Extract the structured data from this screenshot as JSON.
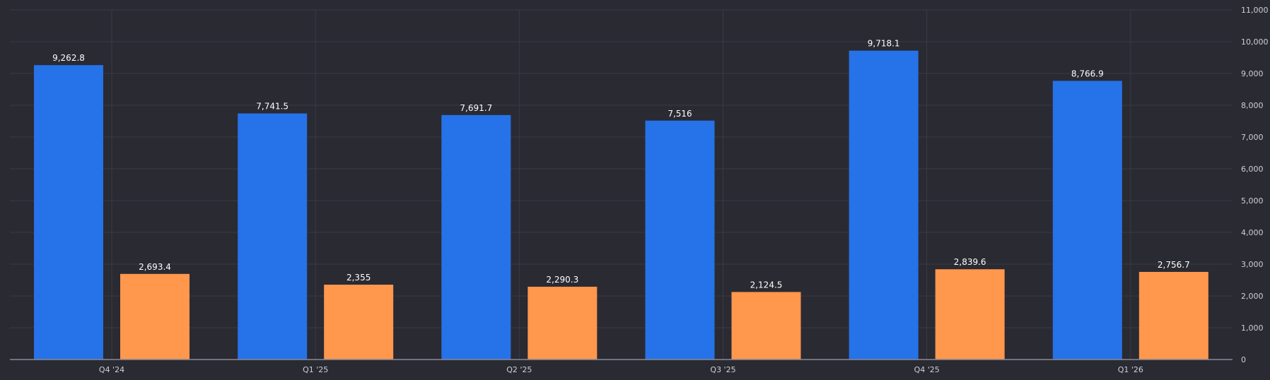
{
  "chart_data": {
    "type": "bar",
    "title": "",
    "xlabel": "",
    "ylabel": "",
    "categories": [
      "Q4 '24",
      "Q1 '25",
      "Q2 '25",
      "Q3 '25",
      "Q4 '25",
      "Q1 '26"
    ],
    "series": [
      {
        "values": [
          9262.8,
          7741.5,
          7691.7,
          7516,
          9718.1,
          8766.9
        ],
        "labels": [
          "9,262.8",
          "7,741.5",
          "7,691.7",
          "7,516",
          "9,718.1",
          "8,766.9"
        ],
        "color": "#2672e8"
      },
      {
        "values": [
          2693.4,
          2355,
          2290.3,
          2124.5,
          2839.6,
          2756.7
        ],
        "labels": [
          "2,693.4",
          "2,355",
          "2,290.3",
          "2,124.5",
          "2,839.6",
          "2,756.7"
        ],
        "color": "#ff974d"
      }
    ],
    "ylim": [
      0,
      11000
    ],
    "yticks": [
      0,
      1000,
      2000,
      3000,
      4000,
      5000,
      6000,
      7000,
      8000,
      9000,
      10000,
      11000
    ],
    "ytick_labels": [
      "0",
      "1,000",
      "2,000",
      "3,000",
      "4,000",
      "5,000",
      "6,000",
      "7,000",
      "8,000",
      "9,000",
      "10,000",
      "11,000"
    ],
    "y_axis_side": "right",
    "grid": true,
    "legend": "none",
    "colors": {
      "background": "#2a2a33",
      "grid": "#3a3a44",
      "axis": "#8a8a95",
      "tick_text": "#cfcfd6",
      "data_text": "#ffffff"
    }
  }
}
